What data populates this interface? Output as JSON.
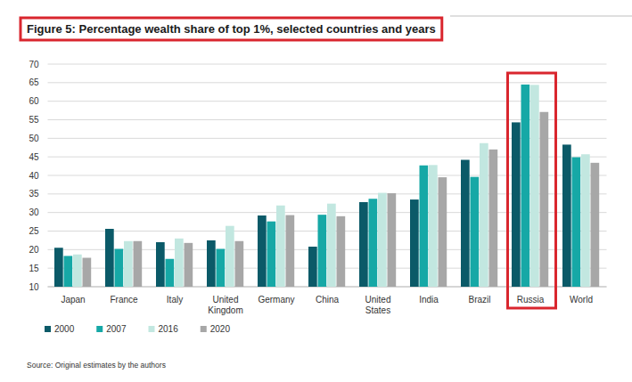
{
  "chart_data": {
    "type": "bar",
    "title": "Figure 5: Percentage wealth share of top 1%, selected countries and years",
    "source": "Source: Original estimates by the authors",
    "categories": [
      "Japan",
      "France",
      "Italy",
      "United Kingdom",
      "Germany",
      "China",
      "United States",
      "India",
      "Brazil",
      "Russia",
      "World"
    ],
    "series": [
      {
        "name": "2000",
        "color": "#0b5a68",
        "values": [
          20.5,
          25.6,
          22.0,
          22.5,
          29.2,
          20.8,
          32.8,
          33.5,
          44.2,
          54.3,
          48.3
        ]
      },
      {
        "name": "2007",
        "color": "#16a8a6",
        "values": [
          18.3,
          20.2,
          17.5,
          20.2,
          27.6,
          29.4,
          33.7,
          42.7,
          39.6,
          64.5,
          44.9
        ]
      },
      {
        "name": "2016",
        "color": "#c2e7e0",
        "values": [
          18.7,
          22.3,
          23.0,
          26.4,
          31.9,
          32.4,
          35.3,
          42.8,
          48.7,
          64.4,
          45.7
        ]
      },
      {
        "name": "2020",
        "color": "#a7a7a7",
        "values": [
          17.8,
          22.3,
          21.8,
          22.3,
          29.3,
          29.0,
          35.2,
          39.5,
          47.0,
          57.1,
          43.4
        ]
      }
    ],
    "ylim": [
      10,
      70
    ],
    "yticks": [
      10,
      15,
      20,
      25,
      30,
      35,
      40,
      45,
      50,
      55,
      60,
      65,
      70
    ],
    "grid": true,
    "legend": "bottom-left"
  }
}
